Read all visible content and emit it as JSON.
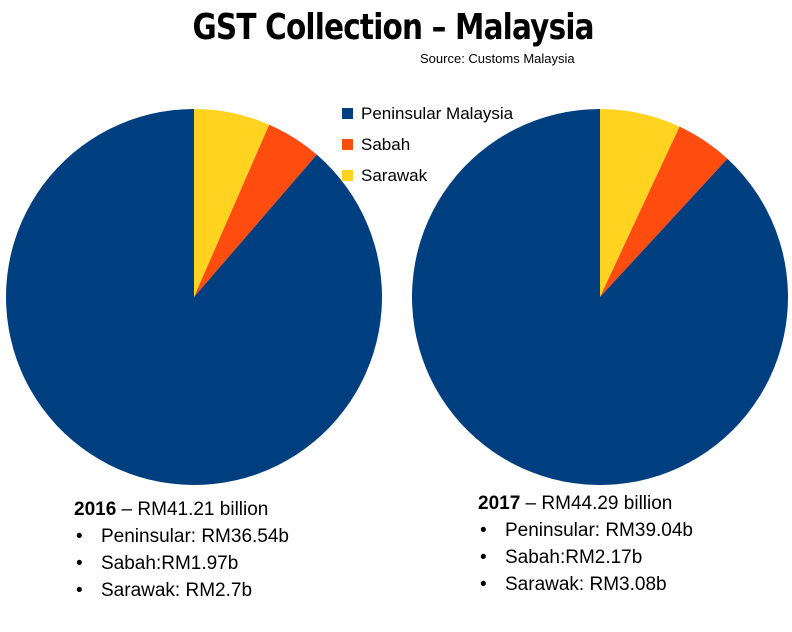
{
  "title": "GST Collection – Malaysia",
  "source": "Source: Customs Malaysia",
  "legend": [
    {
      "label": "Peninsular Malaysia",
      "color": "#003f7f"
    },
    {
      "label": "Sabah",
      "color": "#ff4d0f"
    },
    {
      "label": "Sarawak",
      "color": "#ffd320"
    }
  ],
  "chart_data": [
    {
      "type": "pie",
      "categories": [
        "Peninsular Malaysia",
        "Sabah",
        "Sarawak"
      ],
      "values": [
        36.54,
        1.97,
        2.7
      ],
      "colors": [
        "#003f7f",
        "#ff4d0f",
        "#ffd320"
      ]
    },
    {
      "type": "pie",
      "categories": [
        "Peninsular Malaysia",
        "Sabah",
        "Sarawak"
      ],
      "values": [
        39.04,
        2.17,
        3.08
      ],
      "colors": [
        "#003f7f",
        "#ff4d0f",
        "#ffd320"
      ]
    }
  ],
  "summaries": [
    {
      "year": "2016",
      "total": " – RM41.21 billion",
      "bullet": "•",
      "lines": [
        "Peninsular: RM36.54b",
        "Sabah:RM1.97b",
        "Sarawak: RM2.7b"
      ]
    },
    {
      "year": "2017",
      "total": " – RM44.29 billion",
      "bullet": "•",
      "lines": [
        "Peninsular: RM39.04b",
        "Sabah:RM2.17b",
        "Sarawak: RM3.08b"
      ]
    }
  ]
}
